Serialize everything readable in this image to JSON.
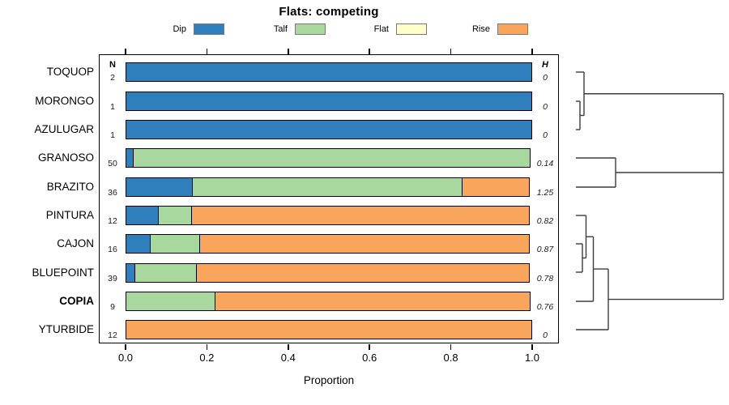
{
  "chart_data": {
    "type": "bar",
    "variant": "horizontal-stacked-proportion with dendrogram",
    "title": "Flats: competing",
    "xlabel": "Proportion",
    "xlim": [
      0,
      1
    ],
    "x_ticks": [
      "0.0",
      "0.2",
      "0.4",
      "0.6",
      "0.8",
      "1.0"
    ],
    "grid": false,
    "legend_position": "top",
    "n_header": "N",
    "h_header": "H",
    "legend": [
      {
        "label": "Dip",
        "color": "#2e7fbc"
      },
      {
        "label": "Talf",
        "color": "#a8d89e"
      },
      {
        "label": "Flat",
        "color": "#ffffcc"
      },
      {
        "label": "Rise",
        "color": "#f9a55c"
      }
    ],
    "rows": [
      {
        "label": "TOQUOP",
        "n": "2",
        "h": "0",
        "bold": false,
        "segments": [
          {
            "category": "Dip",
            "value": 1.0
          }
        ]
      },
      {
        "label": "MORONGO",
        "n": "1",
        "h": "0",
        "bold": false,
        "segments": [
          {
            "category": "Dip",
            "value": 1.0
          }
        ]
      },
      {
        "label": "AZULUGAR",
        "n": "1",
        "h": "0",
        "bold": false,
        "segments": [
          {
            "category": "Dip",
            "value": 1.0
          }
        ]
      },
      {
        "label": "GRANOSO",
        "n": "50",
        "h": "0.14",
        "bold": false,
        "segments": [
          {
            "category": "Dip",
            "value": 0.02
          },
          {
            "category": "Talf",
            "value": 0.98
          }
        ]
      },
      {
        "label": "BRAZITO",
        "n": "36",
        "h": "1.25",
        "bold": false,
        "segments": [
          {
            "category": "Dip",
            "value": 0.1667
          },
          {
            "category": "Talf",
            "value": 0.6667
          },
          {
            "category": "Rise",
            "value": 0.1667
          }
        ]
      },
      {
        "label": "PINTURA",
        "n": "12",
        "h": "0.82",
        "bold": false,
        "segments": [
          {
            "category": "Dip",
            "value": 0.0833
          },
          {
            "category": "Talf",
            "value": 0.0833
          },
          {
            "category": "Rise",
            "value": 0.8334
          }
        ]
      },
      {
        "label": "CAJON",
        "n": "16",
        "h": "0.87",
        "bold": false,
        "segments": [
          {
            "category": "Dip",
            "value": 0.0625
          },
          {
            "category": "Talf",
            "value": 0.125
          },
          {
            "category": "Rise",
            "value": 0.8125
          }
        ]
      },
      {
        "label": "BLUEPOINT",
        "n": "39",
        "h": "0.78",
        "bold": false,
        "segments": [
          {
            "category": "Dip",
            "value": 0.0256
          },
          {
            "category": "Talf",
            "value": 0.1539
          },
          {
            "category": "Rise",
            "value": 0.8205
          }
        ]
      },
      {
        "label": "COPIA",
        "n": "9",
        "h": "0.76",
        "bold": true,
        "segments": [
          {
            "category": "Talf",
            "value": 0.2222
          },
          {
            "category": "Rise",
            "value": 0.7778
          }
        ]
      },
      {
        "label": "YTURBIDE",
        "n": "12",
        "h": "0",
        "bold": false,
        "segments": [
          {
            "category": "Rise",
            "value": 1.0
          }
        ]
      }
    ],
    "dendrogram": {
      "color": "#3c3c3c",
      "segments": [
        [
          711,
          89,
          721,
          89
        ],
        [
          711,
          125,
          716,
          125
        ],
        [
          711,
          160,
          716,
          160
        ],
        [
          716,
          125,
          716,
          160
        ],
        [
          716,
          142.5,
          721,
          142.5
        ],
        [
          721,
          89,
          721,
          142.5
        ],
        [
          721,
          115.75,
          893,
          115.75
        ],
        [
          711,
          195,
          760,
          195
        ],
        [
          711,
          231,
          760,
          231
        ],
        [
          760,
          195,
          760,
          231
        ],
        [
          760,
          213,
          893,
          213
        ],
        [
          711,
          266,
          723.5,
          266
        ],
        [
          711,
          301,
          719,
          301
        ],
        [
          711,
          336,
          719,
          336
        ],
        [
          719,
          301,
          719,
          336
        ],
        [
          719,
          318.5,
          723.5,
          318.5
        ],
        [
          723.5,
          266,
          723.5,
          318.5
        ],
        [
          723.5,
          292.25,
          732.5,
          292.25
        ],
        [
          711,
          372,
          732.5,
          372
        ],
        [
          732.5,
          292.25,
          732.5,
          372
        ],
        [
          732.5,
          332.1,
          751,
          332.1
        ],
        [
          711,
          407,
          751,
          407
        ],
        [
          751,
          332.1,
          751,
          407
        ],
        [
          751,
          369.6,
          893,
          369.6
        ],
        [
          893,
          115.75,
          893,
          369.6
        ]
      ]
    }
  }
}
